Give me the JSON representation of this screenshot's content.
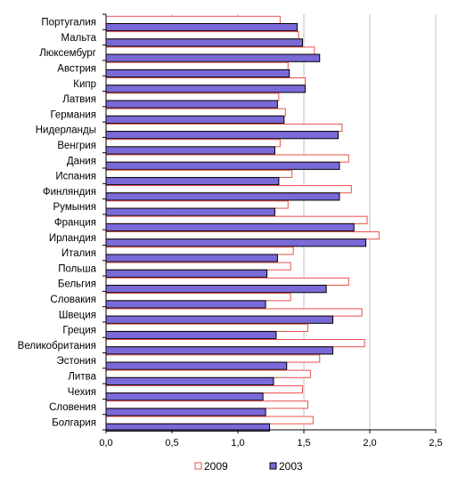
{
  "chart_data": {
    "type": "bar",
    "orientation": "horizontal",
    "categories": [
      "Португалия",
      "Мальта",
      "Люксембург",
      "Австрия",
      "Кипр",
      "Латвия",
      "Германия",
      "Нидерланды",
      "Венгрия",
      "Дания",
      "Испания",
      "Финляндия",
      "Румыния",
      "Франция",
      "Ирландия",
      "Италия",
      "Польша",
      "Бельгия",
      "Словакия",
      "Швеция",
      "Греция",
      "Великобритания",
      "Эстония",
      "Литва",
      "Чехия",
      "Словения",
      "Болгария"
    ],
    "series": [
      {
        "name": "2009",
        "color": "#e8504a",
        "fill": "#ffffff",
        "values": [
          1.32,
          1.46,
          1.58,
          1.38,
          1.51,
          1.31,
          1.36,
          1.79,
          1.32,
          1.84,
          1.41,
          1.86,
          1.38,
          1.98,
          2.07,
          1.42,
          1.4,
          1.84,
          1.4,
          1.94,
          1.53,
          1.96,
          1.62,
          1.55,
          1.49,
          1.53,
          1.57
        ]
      },
      {
        "name": "2003",
        "color": "#7a6ad8",
        "stroke": "#000000",
        "values": [
          1.45,
          1.49,
          1.62,
          1.39,
          1.51,
          1.3,
          1.35,
          1.76,
          1.28,
          1.77,
          1.31,
          1.77,
          1.28,
          1.88,
          1.97,
          1.3,
          1.22,
          1.67,
          1.21,
          1.72,
          1.29,
          1.72,
          1.37,
          1.27,
          1.19,
          1.21,
          1.24
        ]
      }
    ],
    "xlim": [
      0,
      2.5
    ],
    "xticks": [
      "0,0",
      "0,5",
      "1,0",
      "1,5",
      "2,0",
      "2,5"
    ],
    "grid": true,
    "legend_position": "bottom"
  }
}
